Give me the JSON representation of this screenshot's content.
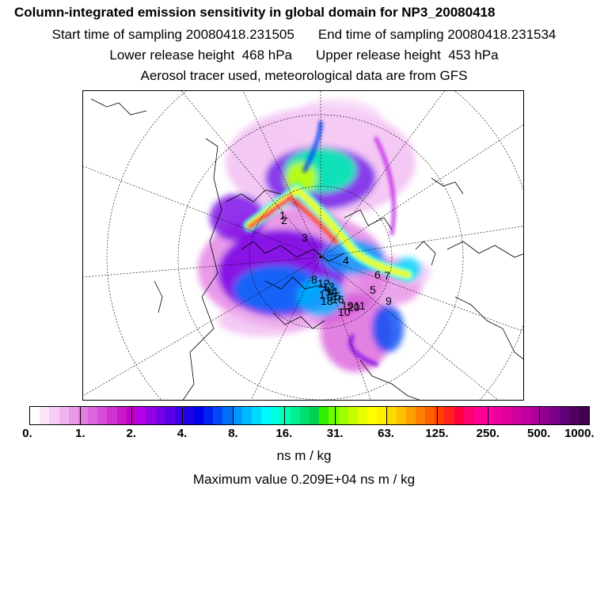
{
  "header": {
    "title": "Column-integrated emission sensitivity in global domain for NP3_20080418",
    "start_time": "Start time of sampling 20080418.231505",
    "end_time": "End time of sampling 20080418.231534",
    "lower_release": "Lower release height  468 hPa",
    "upper_release": "Upper release height  453 hPa",
    "tracer_info": "Aerosol tracer used, meteorological data are from GFS"
  },
  "map": {
    "projection": "polar stereographic (north)",
    "trajectory_labels": [
      "1",
      "2",
      "3",
      "4",
      "5",
      "6",
      "7",
      "8",
      "9",
      "10",
      "11",
      "12",
      "13",
      "14",
      "15",
      "16",
      "17",
      "18",
      "19",
      "20"
    ],
    "colors": {
      "coastline": "#000000",
      "grid": "#000000"
    }
  },
  "colorbar": {
    "tick_labels": [
      "0.",
      "1.",
      "2.",
      "4.",
      "8.",
      "16.",
      "31.",
      "63.",
      "125.",
      "250.",
      "500.",
      "1000."
    ],
    "colors": [
      "#ffffff",
      "#fbe6fb",
      "#f5ccf5",
      "#efb3ef",
      "#e999e9",
      "#e27fe2",
      "#dc66dc",
      "#d64cd6",
      "#d033d0",
      "#ca19ca",
      "#c400c4",
      "#b400e6",
      "#9600e6",
      "#7800e6",
      "#5a00e6",
      "#3c00e6",
      "#1e00e6",
      "#0000e6",
      "#0020f0",
      "#0048f5",
      "#0070fa",
      "#0098ff",
      "#00b8ff",
      "#00d8ff",
      "#00f8ff",
      "#00ffe0",
      "#00ffb0",
      "#00f090",
      "#00e070",
      "#00d050",
      "#30f000",
      "#70ff00",
      "#a0ff00",
      "#c8ff00",
      "#e8ff00",
      "#ffff00",
      "#fff000",
      "#ffd800",
      "#ffc000",
      "#ffa000",
      "#ff8000",
      "#ff6000",
      "#ff4000",
      "#ff2020",
      "#ff0040",
      "#ff0070",
      "#ff0090",
      "#ff00a0",
      "#f000a0",
      "#e000a0",
      "#d000a0",
      "#c000a0",
      "#a80098",
      "#900090",
      "#780088",
      "#600078",
      "#500060",
      "#400050"
    ],
    "units": "ns m / kg",
    "max_value": "Maximum value  0.209E+04 ns m / kg"
  }
}
